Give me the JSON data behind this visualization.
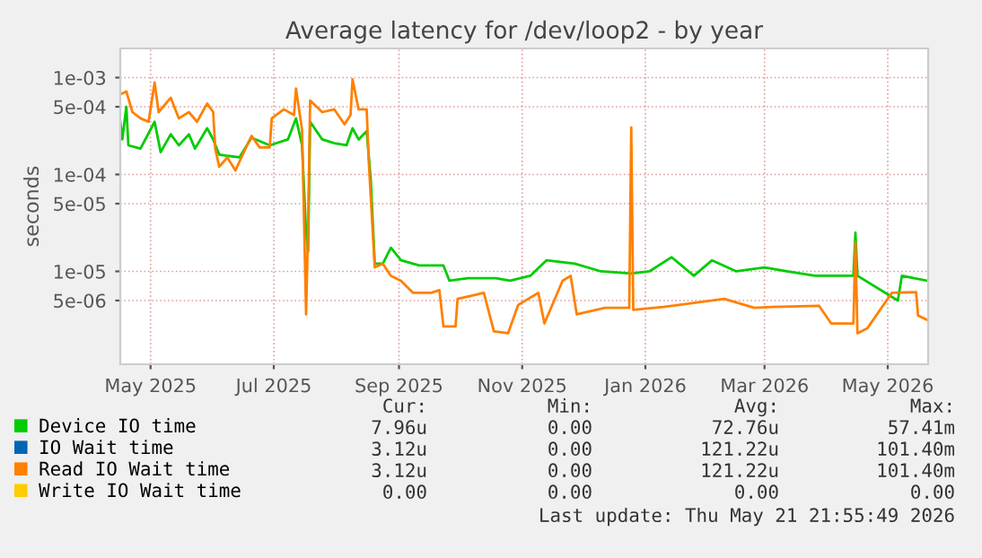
{
  "chart_data": {
    "type": "line",
    "title": "Average latency for /dev/loop2 - by year",
    "ylabel": "seconds",
    "log": "y",
    "grid": true,
    "legend": "bottom",
    "marker": "none",
    "line_style": "solid",
    "xlim": [
      "2025-04-16",
      "2026-05-21"
    ],
    "xticks": [
      {
        "value": "2025-05-01",
        "label": "May 2025"
      },
      {
        "value": "2025-07-01",
        "label": "Jul 2025"
      },
      {
        "value": "2025-09-01",
        "label": "Sep 2025"
      },
      {
        "value": "2025-11-01",
        "label": "Nov 2025"
      },
      {
        "value": "2026-01-01",
        "label": "Jan 2026"
      },
      {
        "value": "2026-03-01",
        "label": "Mar 2026"
      },
      {
        "value": "2026-05-01",
        "label": "May 2026"
      }
    ],
    "ylim": [
      1.1e-06,
      0.002
    ],
    "yticks": [
      {
        "value": 0.001,
        "label": "1e-03"
      },
      {
        "value": 0.0005,
        "label": "5e-04"
      },
      {
        "value": 0.0001,
        "label": "1e-04"
      },
      {
        "value": 5e-05,
        "label": "5e-05"
      },
      {
        "value": 1e-05,
        "label": "1e-05"
      },
      {
        "value": 5e-06,
        "label": "5e-06"
      }
    ],
    "series": [
      {
        "name": "Device IO time",
        "color": "#00cc00",
        "x": [
          "2025-04-16",
          "2025-04-17",
          "2025-04-19",
          "2025-04-20",
          "2025-04-26",
          "2025-05-03",
          "2025-05-06",
          "2025-05-11",
          "2025-05-15",
          "2025-05-20",
          "2025-05-23",
          "2025-05-29",
          "2025-06-01",
          "2025-06-04",
          "2025-06-14",
          "2025-06-20",
          "2025-06-29",
          "2025-07-08",
          "2025-07-12",
          "2025-07-15",
          "2025-07-17",
          "2025-07-18",
          "2025-07-19",
          "2025-07-25",
          "2025-07-31",
          "2025-08-06",
          "2025-08-09",
          "2025-08-12",
          "2025-08-16",
          "2025-08-18",
          "2025-08-20",
          "2025-08-24",
          "2025-08-28",
          "2025-09-02",
          "2025-09-11",
          "2025-09-23",
          "2025-09-26",
          "2025-10-05",
          "2025-10-19",
          "2025-10-26",
          "2025-11-05",
          "2025-11-13",
          "2025-11-27",
          "2025-12-10",
          "2025-12-25",
          "2026-01-03",
          "2026-01-14",
          "2026-01-25",
          "2026-02-03",
          "2026-02-15",
          "2026-03-01",
          "2026-03-12",
          "2026-03-26",
          "2026-04-14",
          "2026-04-15",
          "2026-04-16",
          "2026-05-06",
          "2026-05-08",
          "2026-05-21"
        ],
        "values": [
          0.00035,
          0.00023,
          0.0005,
          0.0002,
          0.000185,
          0.00035,
          0.00017,
          0.00026,
          0.0002,
          0.00026,
          0.000185,
          0.0003,
          0.00023,
          0.00016,
          0.00015,
          0.00024,
          0.0002,
          0.00023,
          0.00038,
          0.0002,
          2.5e-05,
          1.6e-05,
          0.00035,
          0.00023,
          0.00021,
          0.0002,
          0.0003,
          0.00023,
          0.00028,
          9e-05,
          1.2e-05,
          1.2e-05,
          1.75e-05,
          1.3e-05,
          1.15e-05,
          1.15e-05,
          8e-06,
          8.5e-06,
          8.5e-06,
          8e-06,
          9e-06,
          1.3e-05,
          1.2e-05,
          1e-05,
          9.5e-06,
          1e-05,
          1.4e-05,
          9e-06,
          1.3e-05,
          1e-05,
          1.1e-05,
          1e-05,
          9e-06,
          9e-06,
          2.5e-05,
          9e-06,
          5e-06,
          9e-06,
          7.96e-06
        ]
      },
      {
        "name": "IO Wait time",
        "color": "#0066b3"
      },
      {
        "name": "Read IO Wait time",
        "color": "#ff8000",
        "x": [
          "2025-04-16",
          "2025-04-19",
          "2025-04-22",
          "2025-04-26",
          "2025-04-30",
          "2025-05-03",
          "2025-05-05",
          "2025-05-11",
          "2025-05-15",
          "2025-05-20",
          "2025-05-24",
          "2025-05-29",
          "2025-06-01",
          "2025-06-02",
          "2025-06-04",
          "2025-06-08",
          "2025-06-12",
          "2025-06-17",
          "2025-06-20",
          "2025-06-24",
          "2025-06-29",
          "2025-06-30",
          "2025-07-06",
          "2025-07-11",
          "2025-07-12",
          "2025-07-15",
          "2025-07-17",
          "2025-07-18",
          "2025-07-19",
          "2025-07-25",
          "2025-07-31",
          "2025-08-05",
          "2025-08-08",
          "2025-08-09",
          "2025-08-12",
          "2025-08-16",
          "2025-08-17",
          "2025-08-20",
          "2025-08-24",
          "2025-08-28",
          "2025-09-02",
          "2025-09-08",
          "2025-09-17",
          "2025-09-21",
          "2025-09-23",
          "2025-09-29",
          "2025-09-30",
          "2025-10-07",
          "2025-10-13",
          "2025-10-18",
          "2025-10-25",
          "2025-10-30",
          "2025-11-09",
          "2025-11-12",
          "2025-11-21",
          "2025-11-25",
          "2025-11-28",
          "2025-12-12",
          "2025-12-24",
          "2025-12-25",
          "2025-12-26",
          "2026-01-10",
          "2026-02-09",
          "2026-02-24",
          "2026-03-05",
          "2026-03-28",
          "2026-04-03",
          "2026-04-14",
          "2026-04-15",
          "2026-04-16",
          "2026-04-21",
          "2026-05-03",
          "2026-05-15",
          "2026-05-16",
          "2026-05-21"
        ],
        "values": [
          0.00067,
          0.00072,
          0.00044,
          0.00038,
          0.00035,
          0.00089,
          0.00044,
          0.00062,
          0.00038,
          0.00044,
          0.00035,
          0.00054,
          0.00044,
          0.000185,
          0.00012,
          0.00015,
          0.00011,
          0.000185,
          0.00025,
          0.00019,
          0.00019,
          0.00038,
          0.00047,
          0.00041,
          0.00077,
          0.00029,
          3.6e-06,
          2.9e-05,
          0.00058,
          0.00044,
          0.00047,
          0.00033,
          0.00041,
          0.00096,
          0.00047,
          0.00047,
          0.00014,
          1.1e-05,
          1.2e-05,
          9e-06,
          8e-06,
          6e-06,
          6e-06,
          6.4e-06,
          2.7e-06,
          2.7e-06,
          5.2e-06,
          5.6e-06,
          6e-06,
          2.4e-06,
          2.3e-06,
          4.5e-06,
          6e-06,
          2.9e-06,
          8e-06,
          9e-06,
          3.6e-06,
          4.2e-06,
          4.2e-06,
          0.000305,
          4e-06,
          4.3e-06,
          5.2e-06,
          4.2e-06,
          4.3e-06,
          4.4e-06,
          2.9e-06,
          2.9e-06,
          2e-05,
          2.3e-06,
          2.6e-06,
          6e-06,
          6.1e-06,
          3.5e-06,
          3.12e-06
        ]
      },
      {
        "name": "Write IO Wait time",
        "color": "#ffcc00"
      }
    ],
    "annotations": [
      "Cur:",
      "Min:",
      "Avg:",
      "Max:",
      "7.96u",
      "0.00",
      "72.76u",
      "57.41m",
      "3.12u",
      "0.00",
      "121.22u",
      "101.40m",
      "3.12u",
      "0.00",
      "121.22u",
      "101.40m",
      "0.00",
      "0.00",
      "0.00",
      "0.00",
      "Last update: Thu May 21 21:55:49 2026"
    ]
  }
}
